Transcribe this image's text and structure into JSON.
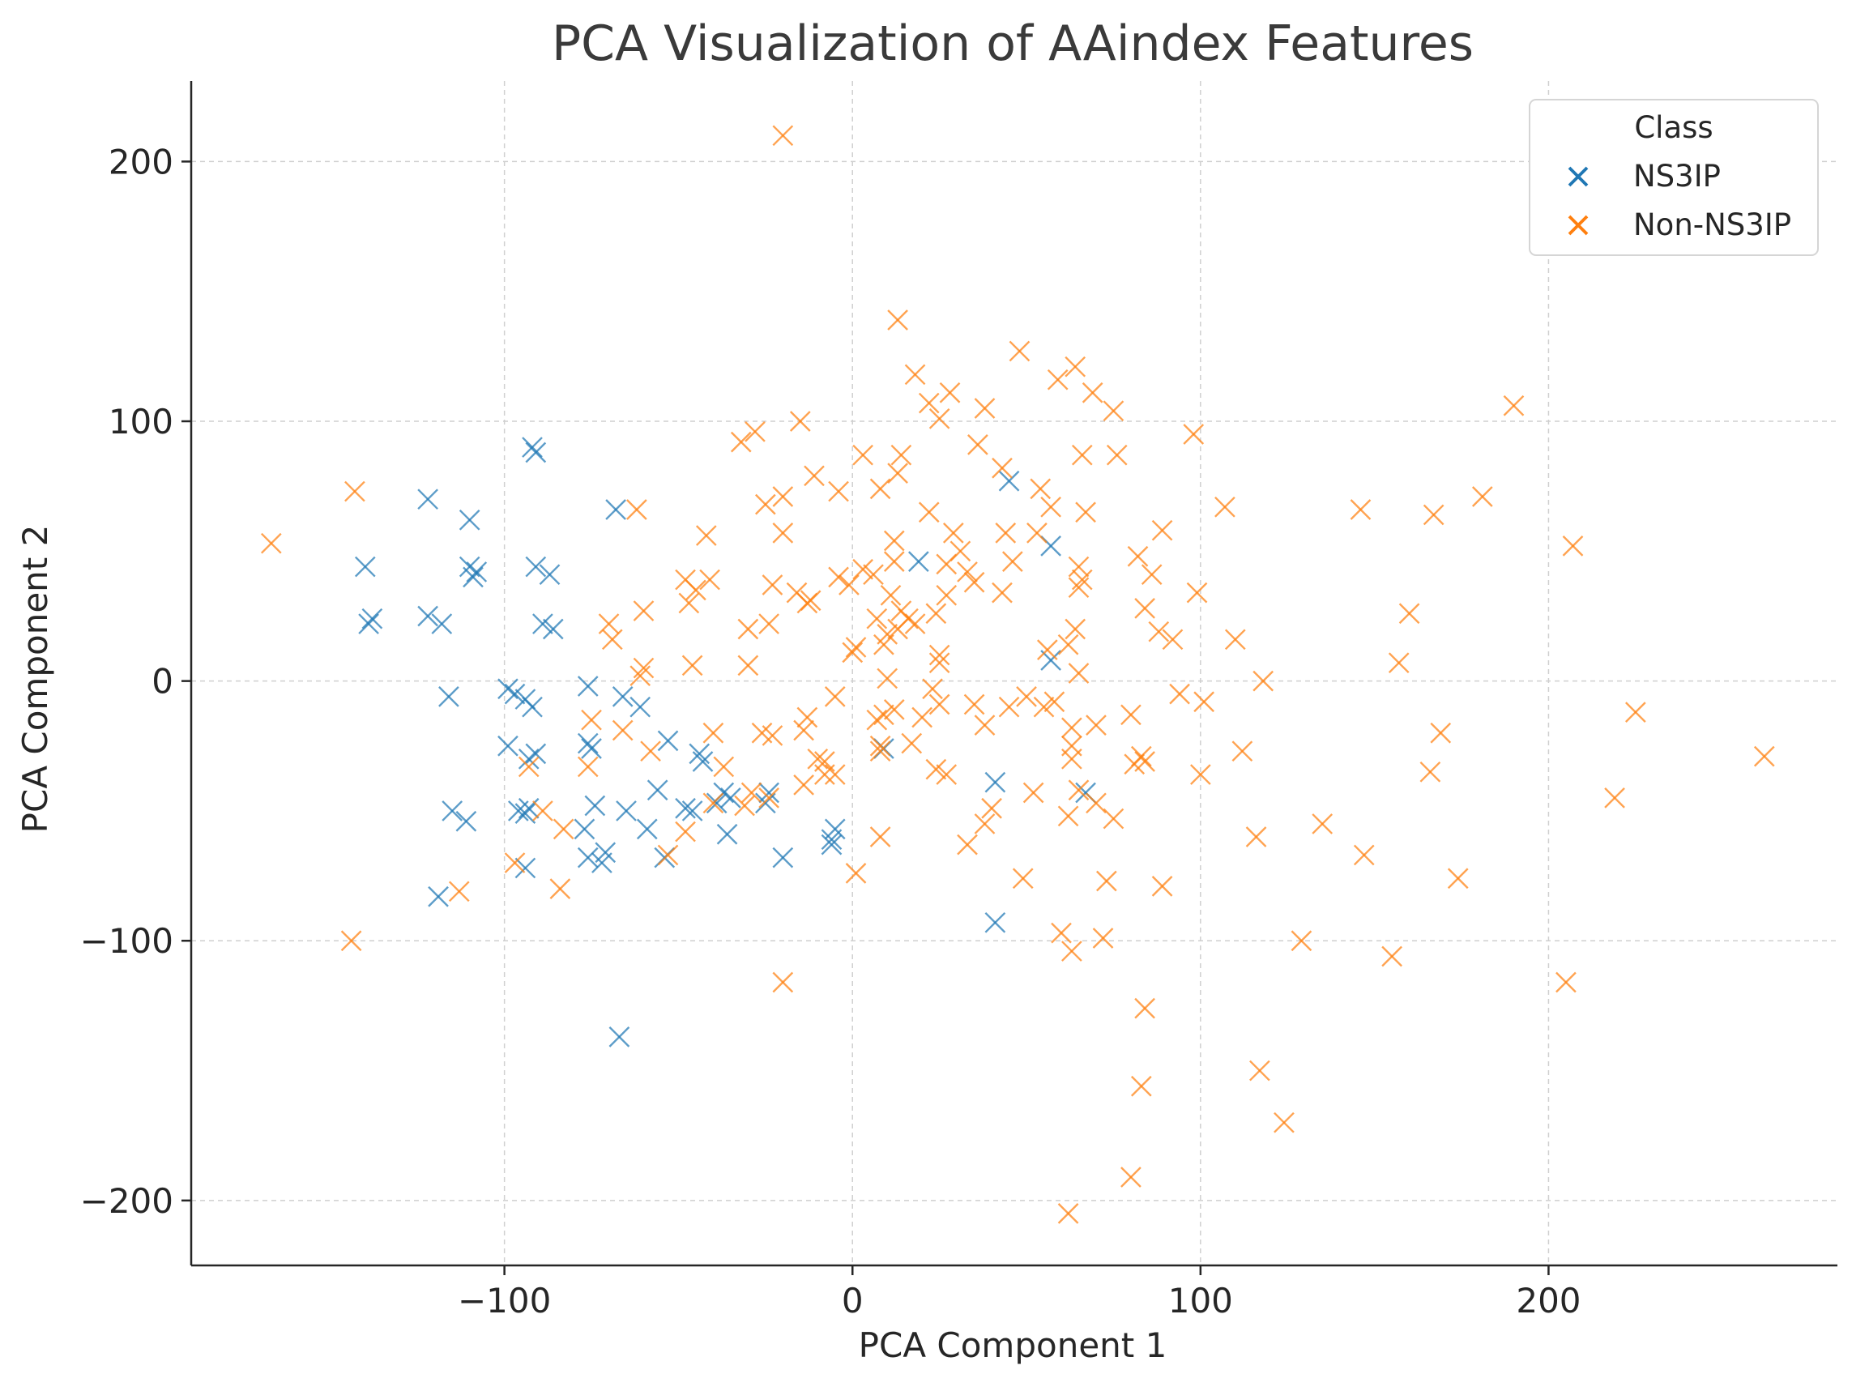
{
  "chart_data": {
    "type": "scatter",
    "title": "PCA Visualization of AAindex Features",
    "xlabel": "PCA Component 1",
    "ylabel": "PCA Component 2",
    "xlim": [
      -190,
      283
    ],
    "ylim": [
      -225,
      231
    ],
    "xticks": [
      -100,
      0,
      100,
      200
    ],
    "yticks": [
      200,
      100,
      0,
      -100,
      -200
    ],
    "xtick_labels": [
      "−100",
      "0",
      "100",
      "200"
    ],
    "ytick_labels": [
      "200",
      "100",
      "0",
      "−100",
      "−200"
    ],
    "grid": true,
    "marker": "x",
    "legend": {
      "title": "Class",
      "placement": "top-right"
    },
    "series": [
      {
        "name": "NS3IP",
        "color": "#1f77b4",
        "points": [
          [
            -122,
            70
          ],
          [
            -92,
            90
          ],
          [
            -91,
            88
          ],
          [
            -110,
            62
          ],
          [
            -140,
            44
          ],
          [
            -138,
            24
          ],
          [
            -139,
            22
          ],
          [
            -122,
            25
          ],
          [
            -118,
            22
          ],
          [
            -110,
            44
          ],
          [
            -108,
            42
          ],
          [
            -109,
            40
          ],
          [
            -91,
            44
          ],
          [
            -87,
            41
          ],
          [
            -89,
            22
          ],
          [
            -86,
            20
          ],
          [
            -68,
            66
          ],
          [
            45,
            77
          ],
          [
            57,
            52
          ],
          [
            57,
            8
          ],
          [
            19,
            46
          ],
          [
            -99,
            -3
          ],
          [
            -97,
            -5
          ],
          [
            -94,
            -7
          ],
          [
            -92,
            -10
          ],
          [
            -116,
            -6
          ],
          [
            -76,
            -2
          ],
          [
            -99,
            -25
          ],
          [
            -93,
            -30
          ],
          [
            -91,
            -28
          ],
          [
            -76,
            -24
          ],
          [
            -75,
            -26
          ],
          [
            -66,
            -6
          ],
          [
            -61,
            -10
          ],
          [
            -53,
            -23
          ],
          [
            -44,
            -28
          ],
          [
            -43,
            -31
          ],
          [
            -65,
            -50
          ],
          [
            -59,
            -57
          ],
          [
            -56,
            -42
          ],
          [
            -48,
            -49
          ],
          [
            -46,
            -50
          ],
          [
            -37,
            -43
          ],
          [
            -35,
            -45
          ],
          [
            -39,
            -47
          ],
          [
            -25,
            -47
          ],
          [
            -24,
            -43
          ],
          [
            -36,
            -59
          ],
          [
            -54,
            -68
          ],
          [
            -20,
            -68
          ],
          [
            -5,
            -57
          ],
          [
            -6,
            -61
          ],
          [
            -6,
            -63
          ],
          [
            -74,
            -48
          ],
          [
            -77,
            -57
          ],
          [
            -76,
            -68
          ],
          [
            -71,
            -66
          ],
          [
            -72,
            -70
          ],
          [
            -96,
            -50
          ],
          [
            -94,
            -51
          ],
          [
            -93,
            -49
          ],
          [
            -94,
            -72
          ],
          [
            -115,
            -50
          ],
          [
            -111,
            -54
          ],
          [
            -119,
            -83
          ],
          [
            -67,
            -137
          ],
          [
            9,
            -26
          ],
          [
            41,
            -39
          ],
          [
            67,
            -43
          ],
          [
            41,
            -93
          ]
        ]
      },
      {
        "name": "Non-NS3IP",
        "color": "#ff7f0e",
        "points": [
          [
            -20,
            210
          ],
          [
            -167,
            53
          ],
          [
            -143,
            73
          ],
          [
            13,
            139
          ],
          [
            48,
            127
          ],
          [
            64,
            121
          ],
          [
            59,
            116
          ],
          [
            18,
            118
          ],
          [
            28,
            111
          ],
          [
            69,
            111
          ],
          [
            22,
            107
          ],
          [
            75,
            104
          ],
          [
            38,
            105
          ],
          [
            25,
            101
          ],
          [
            190,
            106
          ],
          [
            -15,
            100
          ],
          [
            -28,
            96
          ],
          [
            98,
            95
          ],
          [
            -32,
            92
          ],
          [
            36,
            91
          ],
          [
            66,
            87
          ],
          [
            76,
            87
          ],
          [
            3,
            87
          ],
          [
            14,
            87
          ],
          [
            13,
            80
          ],
          [
            -11,
            79
          ],
          [
            43,
            82
          ],
          [
            -4,
            73
          ],
          [
            8,
            74
          ],
          [
            54,
            74
          ],
          [
            -20,
            71
          ],
          [
            -25,
            68
          ],
          [
            -62,
            66
          ],
          [
            57,
            67
          ],
          [
            67,
            65
          ],
          [
            107,
            67
          ],
          [
            146,
            66
          ],
          [
            167,
            64
          ],
          [
            181,
            71
          ],
          [
            207,
            52
          ],
          [
            -20,
            57
          ],
          [
            -42,
            56
          ],
          [
            12,
            54
          ],
          [
            22,
            65
          ],
          [
            29,
            57
          ],
          [
            31,
            50
          ],
          [
            44,
            57
          ],
          [
            53,
            57
          ],
          [
            12,
            46
          ],
          [
            27,
            45
          ],
          [
            33,
            42
          ],
          [
            35,
            38
          ],
          [
            46,
            46
          ],
          [
            65,
            44
          ],
          [
            66,
            39
          ],
          [
            82,
            48
          ],
          [
            86,
            41
          ],
          [
            89,
            58
          ],
          [
            3,
            43
          ],
          [
            6,
            41
          ],
          [
            -1,
            37
          ],
          [
            -4,
            40
          ],
          [
            -16,
            34
          ],
          [
            -23,
            37
          ],
          [
            -48,
            39
          ],
          [
            -41,
            39
          ],
          [
            -45,
            35
          ],
          [
            -47,
            30
          ],
          [
            -12,
            31
          ],
          [
            -13,
            30
          ],
          [
            43,
            34
          ],
          [
            65,
            36
          ],
          [
            99,
            34
          ],
          [
            7,
            24
          ],
          [
            13,
            20
          ],
          [
            16,
            24
          ],
          [
            11,
            33
          ],
          [
            14,
            27
          ],
          [
            18,
            22
          ],
          [
            24,
            26
          ],
          [
            27,
            33
          ],
          [
            10,
            18
          ],
          [
            9,
            14
          ],
          [
            1,
            13
          ],
          [
            0,
            11
          ],
          [
            -30,
            20
          ],
          [
            -24,
            22
          ],
          [
            -70,
            22
          ],
          [
            -60,
            27
          ],
          [
            -69,
            16
          ],
          [
            -60,
            5
          ],
          [
            -61,
            2
          ],
          [
            -46,
            6
          ],
          [
            -30,
            6
          ],
          [
            25,
            10
          ],
          [
            25,
            7
          ],
          [
            10,
            1
          ],
          [
            23,
            -3
          ],
          [
            64,
            20
          ],
          [
            62,
            14
          ],
          [
            56,
            12
          ],
          [
            65,
            3
          ],
          [
            84,
            28
          ],
          [
            88,
            19
          ],
          [
            92,
            16
          ],
          [
            110,
            16
          ],
          [
            118,
            0
          ],
          [
            157,
            7
          ],
          [
            160,
            26
          ],
          [
            -5,
            -6
          ],
          [
            -13,
            -14
          ],
          [
            -14,
            -19
          ],
          [
            -26,
            -20
          ],
          [
            -23,
            -21
          ],
          [
            -40,
            -20
          ],
          [
            -37,
            -33
          ],
          [
            -29,
            -43
          ],
          [
            -31,
            -48
          ],
          [
            -24,
            -45
          ],
          [
            -14,
            -40
          ],
          [
            -8,
            -36
          ],
          [
            -5,
            -36
          ],
          [
            -8,
            -31
          ],
          [
            -10,
            -30
          ],
          [
            -58,
            -27
          ],
          [
            -66,
            -19
          ],
          [
            -75,
            -15
          ],
          [
            -76,
            -33
          ],
          [
            -93,
            -33
          ],
          [
            -89,
            -50
          ],
          [
            -83,
            -57
          ],
          [
            -97,
            -70
          ],
          [
            -84,
            -80
          ],
          [
            -144,
            -100
          ],
          [
            -113,
            -81
          ],
          [
            -48,
            -58
          ],
          [
            -40,
            -47
          ],
          [
            -53,
            -67
          ],
          [
            8,
            -27
          ],
          [
            8,
            -25
          ],
          [
            17,
            -24
          ],
          [
            7,
            -15
          ],
          [
            9,
            -13
          ],
          [
            12,
            -11
          ],
          [
            20,
            -14
          ],
          [
            25,
            -9
          ],
          [
            35,
            -9
          ],
          [
            38,
            -17
          ],
          [
            45,
            -10
          ],
          [
            50,
            -6
          ],
          [
            55,
            -10
          ],
          [
            58,
            -8
          ],
          [
            63,
            -18
          ],
          [
            70,
            -17
          ],
          [
            80,
            -13
          ],
          [
            94,
            -5
          ],
          [
            101,
            -8
          ],
          [
            83,
            -29
          ],
          [
            81,
            -32
          ],
          [
            84,
            -31
          ],
          [
            63,
            -25
          ],
          [
            63,
            -30
          ],
          [
            24,
            -34
          ],
          [
            27,
            -36
          ],
          [
            40,
            -49
          ],
          [
            38,
            -55
          ],
          [
            33,
            -63
          ],
          [
            52,
            -43
          ],
          [
            62,
            -52
          ],
          [
            65,
            -42
          ],
          [
            75,
            -53
          ],
          [
            70,
            -47
          ],
          [
            100,
            -36
          ],
          [
            112,
            -27
          ],
          [
            116,
            -60
          ],
          [
            135,
            -55
          ],
          [
            147,
            -67
          ],
          [
            166,
            -35
          ],
          [
            169,
            -20
          ],
          [
            174,
            -76
          ],
          [
            219,
            -45
          ],
          [
            225,
            -12
          ],
          [
            262,
            -29
          ],
          [
            8,
            -60
          ],
          [
            1,
            -74
          ],
          [
            49,
            -76
          ],
          [
            73,
            -77
          ],
          [
            89,
            -79
          ],
          [
            60,
            -97
          ],
          [
            63,
            -104
          ],
          [
            72,
            -99
          ],
          [
            129,
            -100
          ],
          [
            155,
            -106
          ],
          [
            -20,
            -116
          ],
          [
            205,
            -116
          ],
          [
            84,
            -126
          ],
          [
            117,
            -150
          ],
          [
            83,
            -156
          ],
          [
            124,
            -170
          ],
          [
            80,
            -191
          ],
          [
            62,
            -205
          ]
        ]
      }
    ]
  }
}
